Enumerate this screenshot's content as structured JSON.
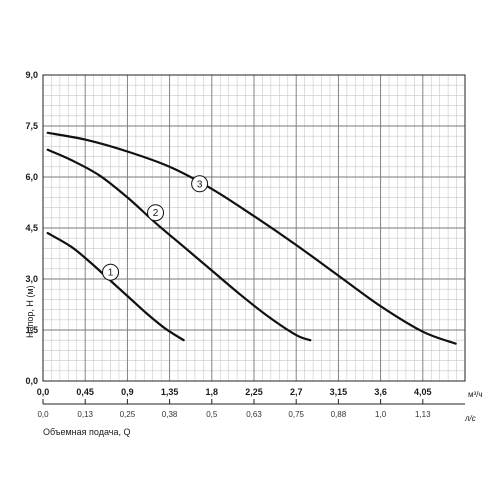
{
  "chart_data": {
    "type": "line",
    "ylabel": "Напор, H (м)",
    "xlabel_bottom": "Объемная подача, Q",
    "x_unit_primary": "м³/ч",
    "x_unit_secondary": "л/с",
    "xlim": [
      0,
      4.5
    ],
    "ylim": [
      0,
      9
    ],
    "x_ticks": [
      "0,0",
      "0,45",
      "0,9",
      "1,35",
      "1,8",
      "2,25",
      "2,7",
      "3,15",
      "3,6",
      "4,05"
    ],
    "x_tick_values": [
      0,
      0.45,
      0.9,
      1.35,
      1.8,
      2.25,
      2.7,
      3.15,
      3.6,
      4.05
    ],
    "x2_ticks": [
      "0,0",
      "0,13",
      "0,25",
      "0,38",
      "0,5",
      "0,63",
      "0,75",
      "0,88",
      "1,0",
      "1,13"
    ],
    "y_ticks": [
      "0,0",
      "1,5",
      "3,0",
      "4,5",
      "6,0",
      "7,5",
      "9,0"
    ],
    "y_tick_values": [
      0,
      1.5,
      3,
      4.5,
      6,
      7.5,
      9
    ],
    "grid": true,
    "series": [
      {
        "name": "1",
        "x": [
          0.05,
          0.3,
          0.5,
          0.7,
          0.9,
          1.1,
          1.3,
          1.5
        ],
        "y": [
          4.35,
          3.95,
          3.5,
          3.0,
          2.5,
          2.0,
          1.55,
          1.2
        ],
        "label_at": [
          0.72,
          3.2
        ]
      },
      {
        "name": "2",
        "x": [
          0.05,
          0.3,
          0.6,
          0.9,
          1.2,
          1.5,
          1.8,
          2.1,
          2.4,
          2.7,
          2.85
        ],
        "y": [
          6.8,
          6.5,
          6.05,
          5.4,
          4.65,
          3.95,
          3.25,
          2.55,
          1.9,
          1.35,
          1.2
        ],
        "label_at": [
          1.2,
          4.95
        ]
      },
      {
        "name": "3",
        "x": [
          0.05,
          0.45,
          0.9,
          1.35,
          1.8,
          2.25,
          2.7,
          3.15,
          3.6,
          4.05,
          4.4
        ],
        "y": [
          7.3,
          7.1,
          6.75,
          6.3,
          5.65,
          4.85,
          4.0,
          3.1,
          2.2,
          1.45,
          1.1
        ],
        "label_at": [
          1.67,
          5.8
        ]
      }
    ]
  }
}
